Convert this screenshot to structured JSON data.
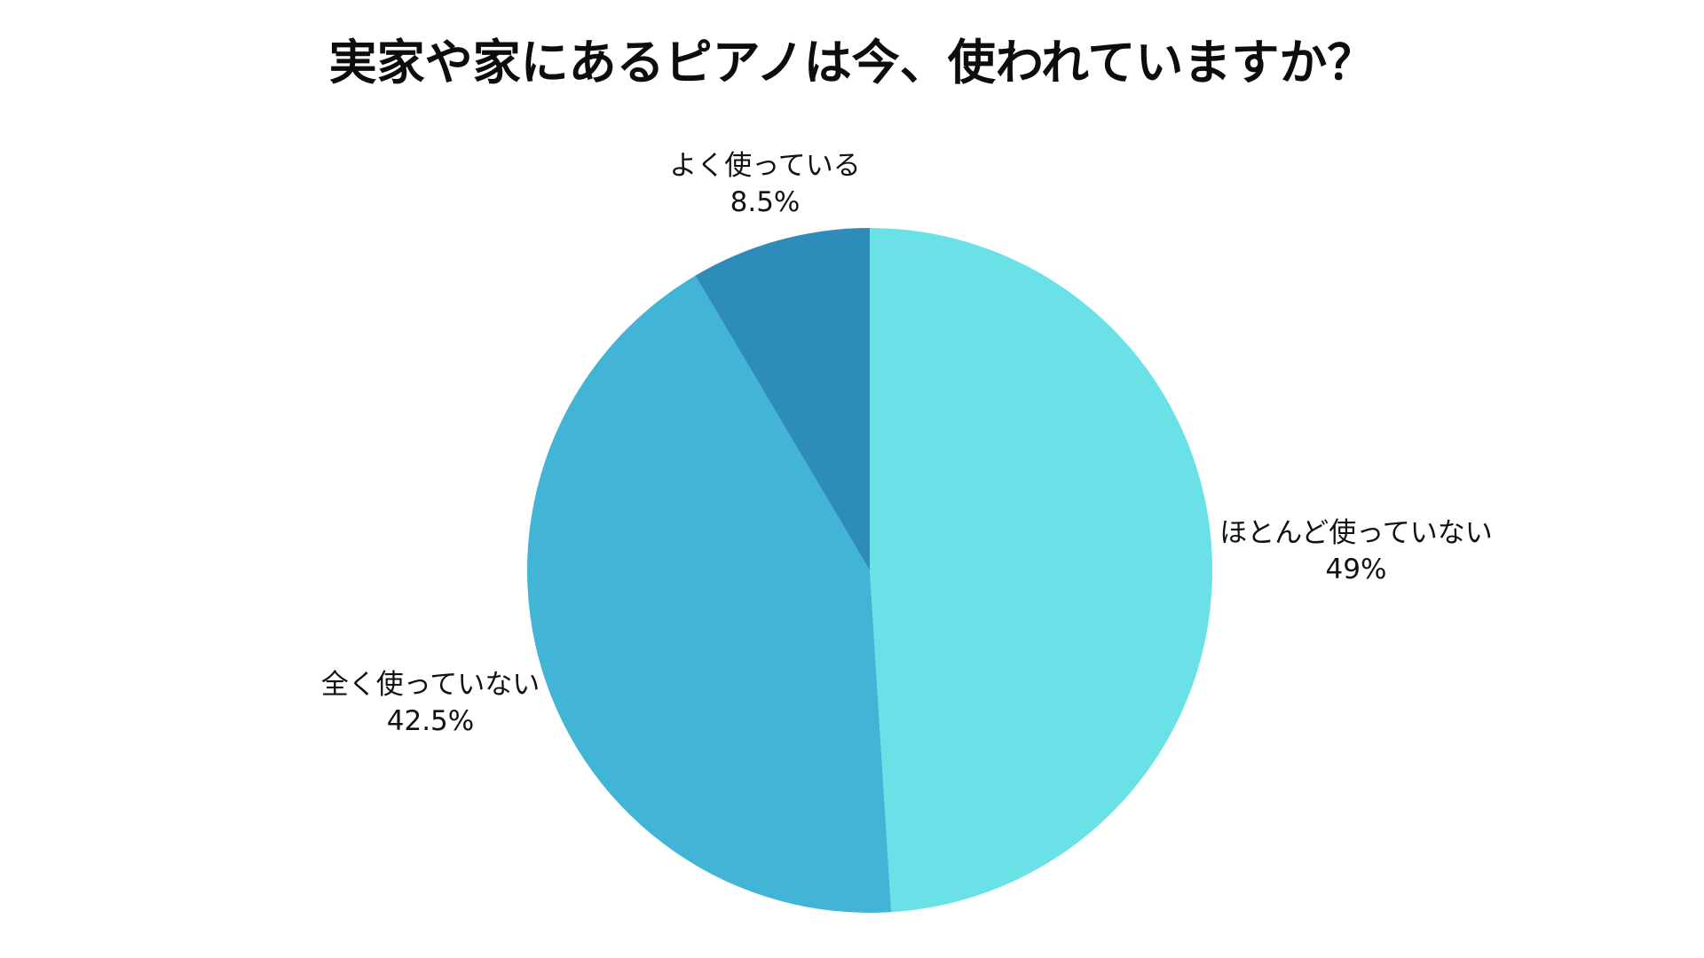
{
  "page": {
    "background_color": "#ffffff",
    "text_color": "#111111"
  },
  "chart_data": {
    "type": "pie",
    "title": "実家や家にあるピアノは今、使われていますか？",
    "start_angle_deg": -90,
    "direction": "clockwise",
    "legend_position": "none",
    "labels_outside": true,
    "unit": "%",
    "slices": [
      {
        "label": "ほとんど使っていない",
        "value": 49,
        "display_value": "49%",
        "color": "#69E1E6"
      },
      {
        "label": "全く使っていない",
        "value": 42.5,
        "display_value": "42.5%",
        "color": "#42B5D6"
      },
      {
        "label": "よく使っている",
        "value": 8.5,
        "display_value": "8.5%",
        "color": "#2E8CBB"
      }
    ]
  }
}
